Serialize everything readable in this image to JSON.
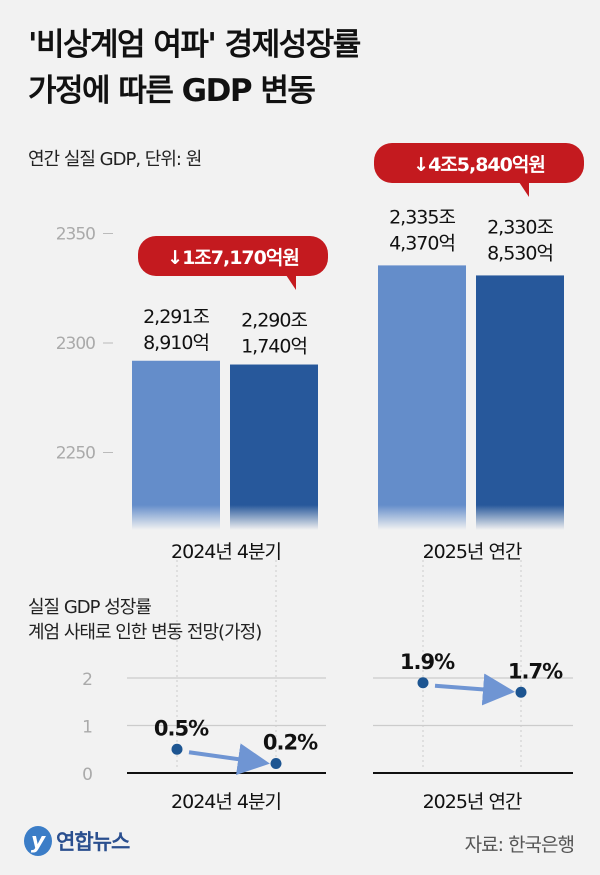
{
  "title_lines": [
    "'비상계엄 여파' 경제성장률",
    "가정에 따른 GDP 변동"
  ],
  "source": "자료: 한국은행",
  "logo_text": "연합뉴스",
  "colors": {
    "light_bar": "#648dca",
    "dark_bar": "#27589b",
    "callout": "#c41a1f",
    "point": "#1d5591",
    "arrow": "#6f95d3"
  },
  "chart_data": [
    {
      "type": "bar",
      "subtitle": "연간 실질 GDP, 단위: 원",
      "categories": [
        "2024년 4분기",
        "2025년 연간"
      ],
      "yticks": [
        2250,
        2300,
        2350
      ],
      "ylim": [
        2210,
        2360
      ],
      "bars": [
        {
          "category": "2024년 4분기",
          "value": 2291.891,
          "label": [
            "2,291조",
            "8,910억"
          ],
          "tone": "light"
        },
        {
          "category": "2024년 4분기",
          "value": 2290.174,
          "label": [
            "2,290조",
            "1,740억"
          ],
          "tone": "dark"
        },
        {
          "category": "2025년 연간",
          "value": 2335.437,
          "label": [
            "2,335조",
            "4,370억"
          ],
          "tone": "light"
        },
        {
          "category": "2025년 연간",
          "value": 2330.853,
          "label": [
            "2,330조",
            "8,530억"
          ],
          "tone": "dark"
        }
      ],
      "callouts": [
        "↓1조7,170억원",
        "↓4조5,840억원"
      ]
    },
    {
      "type": "line",
      "subtitle_lines": [
        "실질 GDP 성장률",
        "계엄 사태로 인한 변동 전망(가정)"
      ],
      "categories": [
        "2024년 4분기",
        "2025년 연간"
      ],
      "yticks": [
        0,
        1,
        2
      ],
      "ylim": [
        0,
        2
      ],
      "pairs": [
        {
          "category": "2024년 4분기",
          "from": 0.5,
          "to": 0.2,
          "labels": [
            "0.5%",
            "0.2%"
          ]
        },
        {
          "category": "2025년 연간",
          "from": 1.9,
          "to": 1.7,
          "labels": [
            "1.9%",
            "1.7%"
          ]
        }
      ]
    }
  ]
}
